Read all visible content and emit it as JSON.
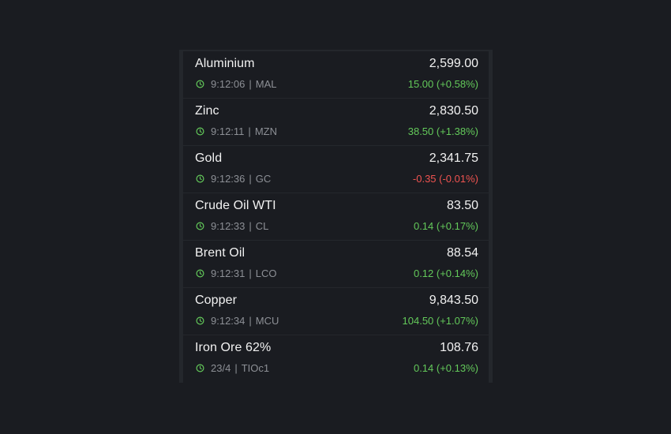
{
  "colors": {
    "up": "#63c95a",
    "down": "#ef5350",
    "clock": "#63c95a"
  },
  "rows": [
    {
      "name": "Aluminium",
      "price": "2,599.00",
      "time": "9:12:06",
      "sep": "|",
      "symbol": "MAL",
      "change": "15.00 (+0.58%)",
      "direction": "up",
      "icon": "clock-icon"
    },
    {
      "name": "Zinc",
      "price": "2,830.50",
      "time": "9:12:11",
      "sep": "|",
      "symbol": "MZN",
      "change": "38.50 (+1.38%)",
      "direction": "up",
      "icon": "clock-icon"
    },
    {
      "name": "Gold",
      "price": "2,341.75",
      "time": "9:12:36",
      "sep": "|",
      "symbol": "GC",
      "change": "-0.35 (-0.01%)",
      "direction": "down",
      "icon": "clock-icon"
    },
    {
      "name": "Crude Oil WTI",
      "price": "83.50",
      "time": "9:12:33",
      "sep": "|",
      "symbol": "CL",
      "change": "0.14 (+0.17%)",
      "direction": "up",
      "icon": "clock-icon"
    },
    {
      "name": "Brent Oil",
      "price": "88.54",
      "time": "9:12:31",
      "sep": "|",
      "symbol": "LCO",
      "change": "0.12 (+0.14%)",
      "direction": "up",
      "icon": "clock-icon"
    },
    {
      "name": "Copper",
      "price": "9,843.50",
      "time": "9:12:34",
      "sep": "|",
      "symbol": "MCU",
      "change": "104.50 (+1.07%)",
      "direction": "up",
      "icon": "clock-icon"
    },
    {
      "name": "Iron Ore 62%",
      "price": "108.76",
      "time": "23/4",
      "sep": "|",
      "symbol": "TIOc1",
      "change": "0.14 (+0.13%)",
      "direction": "up",
      "icon": "clock-icon"
    }
  ]
}
